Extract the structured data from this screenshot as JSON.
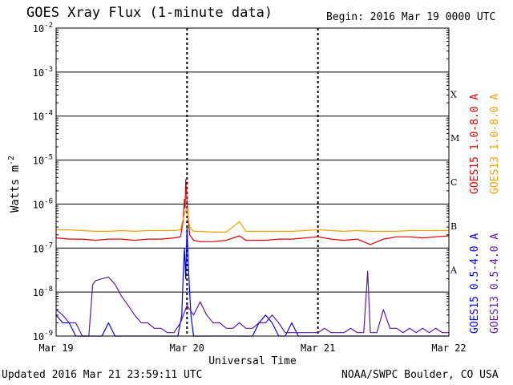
{
  "header": {
    "title": "GOES Xray Flux (1-minute data)",
    "begin": "Begin:  2016 Mar 19 0000 UTC"
  },
  "footer": {
    "updated": "Updated 2016 Mar 21 23:59:11 UTC",
    "credit": "NOAA/SWPC Boulder, CO USA"
  },
  "chart_data": {
    "type": "line",
    "xlabel": "Universal Time",
    "ylabel_base": "Watts m",
    "ylabel_exp": "-2",
    "y_scale": "log",
    "ylim": [
      1e-09,
      0.01
    ],
    "xlim": [
      "2016-03-19 00:00",
      "2016-03-22 00:00"
    ],
    "x_ticks": [
      {
        "day": 0,
        "label": "Mar 19"
      },
      {
        "day": 1,
        "label": "Mar 20"
      },
      {
        "day": 2,
        "label": "Mar 21"
      },
      {
        "day": 3,
        "label": "Mar 22"
      }
    ],
    "y_ticks": [
      {
        "exp": -9,
        "label": "10",
        "sup": "-9"
      },
      {
        "exp": -8,
        "label": "10",
        "sup": "-8"
      },
      {
        "exp": -7,
        "label": "10",
        "sup": "-7"
      },
      {
        "exp": -6,
        "label": "10",
        "sup": "-6"
      },
      {
        "exp": -5,
        "label": "10",
        "sup": "-5"
      },
      {
        "exp": -4,
        "label": "10",
        "sup": "-4"
      },
      {
        "exp": -3,
        "label": "10",
        "sup": "-3"
      },
      {
        "exp": -2,
        "label": "10",
        "sup": "-2"
      }
    ],
    "flare_classes": [
      {
        "label": "A",
        "exp": -8
      },
      {
        "label": "B",
        "exp": -7
      },
      {
        "label": "C",
        "exp": -6
      },
      {
        "label": "M",
        "exp": -5
      },
      {
        "label": "X",
        "exp": -4
      }
    ],
    "grid": true,
    "series": [
      {
        "name": "GOES15 1.0-8.0 A",
        "color": "#e00000",
        "x_days": [
          0.0,
          0.1,
          0.2,
          0.3,
          0.4,
          0.5,
          0.6,
          0.7,
          0.8,
          0.9,
          0.95,
          0.97,
          0.98,
          0.985,
          0.99,
          1.0,
          1.01,
          1.02,
          1.05,
          1.1,
          1.2,
          1.3,
          1.4,
          1.45,
          1.5,
          1.6,
          1.7,
          1.8,
          1.9,
          2.0,
          2.1,
          2.2,
          2.3,
          2.4,
          2.5,
          2.6,
          2.7,
          2.8,
          2.9,
          3.0
        ],
        "y": [
          1.7e-07,
          1.6e-07,
          1.6e-07,
          1.5e-07,
          1.6e-07,
          1.6e-07,
          1.5e-07,
          1.6e-07,
          1.6e-07,
          1.7e-07,
          1.8e-07,
          4e-07,
          1.3e-06,
          8e-07,
          3.6e-06,
          1.2e-06,
          4e-07,
          2e-07,
          1.5e-07,
          1.4e-07,
          1.4e-07,
          1.5e-07,
          1.9e-07,
          1.5e-07,
          1.5e-07,
          1.5e-07,
          1.6e-07,
          1.6e-07,
          1.7e-07,
          1.8e-07,
          1.6e-07,
          1.5e-07,
          1.6e-07,
          1.2e-07,
          1.6e-07,
          1.8e-07,
          1.8e-07,
          1.7e-07,
          1.8e-07,
          1.9e-07
        ]
      },
      {
        "name": "GOES13 1.0-8.0 A",
        "color": "#f0a000",
        "x_days": [
          0.0,
          0.1,
          0.2,
          0.3,
          0.4,
          0.5,
          0.6,
          0.7,
          0.8,
          0.9,
          0.95,
          0.98,
          1.0,
          1.02,
          1.05,
          1.1,
          1.2,
          1.3,
          1.4,
          1.45,
          1.5,
          1.6,
          1.7,
          1.8,
          1.9,
          2.0,
          2.1,
          2.2,
          2.3,
          2.4,
          2.5,
          2.6,
          2.7,
          2.8,
          2.9,
          3.0
        ],
        "y": [
          2.6e-07,
          2.6e-07,
          2.5e-07,
          2.4e-07,
          2.4e-07,
          2.5e-07,
          2.4e-07,
          2.5e-07,
          2.5e-07,
          2.5e-07,
          2.6e-07,
          6e-07,
          8e-07,
          3e-07,
          2.4e-07,
          2.4e-07,
          2.3e-07,
          2.3e-07,
          4e-07,
          2.4e-07,
          2.4e-07,
          2.4e-07,
          2.4e-07,
          2.4e-07,
          2.5e-07,
          2.6e-07,
          2.5e-07,
          2.4e-07,
          2.5e-07,
          2.4e-07,
          2.4e-07,
          2.4e-07,
          2.5e-07,
          2.5e-07,
          2.5e-07,
          2.5e-07
        ]
      },
      {
        "name": "GOES15 0.5-4.0 A",
        "color": "#0000ff",
        "x_days": [
          0.0,
          0.05,
          0.1,
          0.15,
          0.2,
          0.25,
          0.3,
          0.35,
          0.4,
          0.45,
          0.5,
          0.55,
          0.6,
          0.65,
          0.7,
          0.75,
          0.8,
          0.85,
          0.9,
          0.93,
          0.96,
          0.97,
          0.98,
          0.99,
          1.0,
          1.01,
          1.02,
          1.03,
          1.05,
          1.1,
          1.15,
          1.2,
          1.25,
          1.3,
          1.35,
          1.4,
          1.45,
          1.5,
          1.55,
          1.6,
          1.65,
          1.7,
          1.75,
          1.8,
          1.85,
          1.9,
          1.95,
          2.0,
          2.1,
          2.2,
          2.3,
          2.4,
          2.5,
          2.6,
          2.7,
          2.8,
          2.9,
          3.0
        ],
        "y": [
          3e-09,
          2e-09,
          2e-09,
          1e-09,
          1e-09,
          1e-09,
          1e-09,
          1e-09,
          2e-09,
          1e-09,
          1e-09,
          1e-09,
          1e-09,
          1e-09,
          1e-09,
          1e-09,
          1e-09,
          1e-09,
          1e-09,
          1e-09,
          3e-09,
          2e-08,
          1e-07,
          2e-08,
          3e-07,
          4e-08,
          1e-08,
          3e-09,
          1e-09,
          1e-09,
          1e-09,
          1e-09,
          1e-09,
          1e-09,
          1e-09,
          1e-09,
          1e-09,
          1e-09,
          2e-09,
          3e-09,
          2e-09,
          1e-09,
          1e-09,
          2e-09,
          1e-09,
          1e-09,
          1e-09,
          1e-09,
          1e-09,
          1e-09,
          1e-09,
          1e-09,
          1e-09,
          1e-09,
          1e-09,
          1e-09,
          1e-09,
          1e-09
        ]
      },
      {
        "name": "GOES13 0.5-4.0 A",
        "color": "#5a1aa8",
        "x_days": [
          0.0,
          0.05,
          0.1,
          0.15,
          0.2,
          0.25,
          0.28,
          0.3,
          0.35,
          0.4,
          0.45,
          0.5,
          0.55,
          0.6,
          0.65,
          0.7,
          0.75,
          0.8,
          0.85,
          0.9,
          0.95,
          1.0,
          1.05,
          1.1,
          1.15,
          1.2,
          1.25,
          1.3,
          1.35,
          1.4,
          1.45,
          1.5,
          1.55,
          1.6,
          1.65,
          1.7,
          1.75,
          1.8,
          1.85,
          1.9,
          1.95,
          2.0,
          2.05,
          2.1,
          2.15,
          2.2,
          2.25,
          2.3,
          2.35,
          2.38,
          2.4,
          2.45,
          2.5,
          2.55,
          2.6,
          2.65,
          2.7,
          2.75,
          2.8,
          2.85,
          2.9,
          2.95,
          3.0
        ],
        "y": [
          4e-09,
          3e-09,
          2e-09,
          2e-09,
          1e-09,
          1e-09,
          1.5e-08,
          1.8e-08,
          2e-08,
          2.2e-08,
          1.5e-08,
          8e-09,
          5e-09,
          3e-09,
          2e-09,
          2e-09,
          1.5e-09,
          1.5e-09,
          1.2e-09,
          1.2e-09,
          2e-09,
          5e-09,
          3e-09,
          6e-09,
          3e-09,
          2e-09,
          2e-09,
          1.5e-09,
          1.5e-09,
          2e-09,
          1.5e-09,
          1.5e-09,
          2e-09,
          2e-09,
          3e-09,
          2e-09,
          1.2e-09,
          1.2e-09,
          1.2e-09,
          1.2e-09,
          1.2e-09,
          1.2e-09,
          1.5e-09,
          1.2e-09,
          1.2e-09,
          1.2e-09,
          1.5e-09,
          1.2e-09,
          1.2e-09,
          3e-08,
          1.2e-09,
          1.2e-09,
          4e-09,
          1.5e-09,
          1.5e-09,
          1.2e-09,
          1.5e-09,
          1.2e-09,
          1.5e-09,
          1.2e-09,
          1.5e-09,
          1.2e-09,
          1.2e-09
        ]
      }
    ]
  }
}
